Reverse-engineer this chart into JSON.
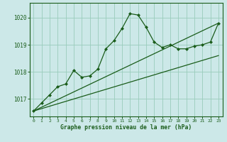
{
  "title": "Graphe pression niveau de la mer (hPa)",
  "bg_color": "#cce8e8",
  "grid_color": "#99ccbb",
  "line_color": "#1a5c1a",
  "marker_color": "#1a5c1a",
  "xlim": [
    -0.5,
    23.5
  ],
  "ylim": [
    1016.35,
    1020.55
  ],
  "yticks": [
    1017,
    1018,
    1019,
    1020
  ],
  "xticks": [
    0,
    1,
    2,
    3,
    4,
    5,
    6,
    7,
    8,
    9,
    10,
    11,
    12,
    13,
    14,
    15,
    16,
    17,
    18,
    19,
    20,
    21,
    22,
    23
  ],
  "series1_x": [
    0,
    1,
    2,
    3,
    4,
    5,
    6,
    7,
    8,
    9,
    10,
    11,
    12,
    13,
    14,
    15,
    16,
    17,
    18,
    19,
    20,
    21,
    22,
    23
  ],
  "series1_y": [
    1016.55,
    1016.85,
    1017.15,
    1017.45,
    1017.55,
    1018.05,
    1017.8,
    1017.85,
    1018.1,
    1018.85,
    1019.15,
    1019.6,
    1020.15,
    1020.1,
    1019.65,
    1019.1,
    1018.9,
    1019.0,
    1018.85,
    1018.85,
    1018.95,
    1019.0,
    1019.1,
    1019.8
  ],
  "series2_x": [
    0,
    23
  ],
  "series2_y": [
    1016.55,
    1019.8
  ],
  "series3_x": [
    0,
    23
  ],
  "series3_y": [
    1016.55,
    1018.6
  ]
}
